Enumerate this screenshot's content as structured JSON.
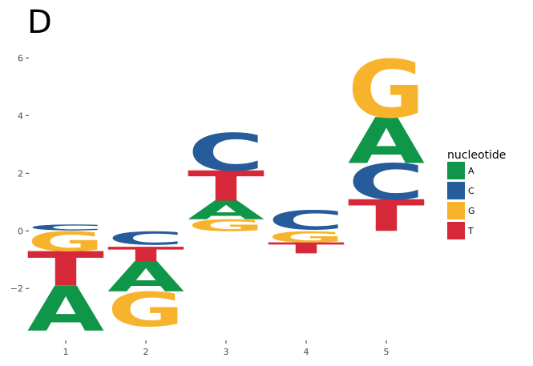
{
  "panel_label": "D",
  "chart_data": {
    "type": "sequence-logo",
    "title": "",
    "xlabel": "",
    "ylabel": "",
    "ylim": [
      -3.8,
      6.9
    ],
    "y_ticks": [
      -2,
      0,
      2,
      4,
      6
    ],
    "y_tick_labels": [
      "−2",
      "0",
      "2",
      "4",
      "6"
    ],
    "x_ticks": [
      1,
      2,
      3,
      4,
      5
    ],
    "x_tick_labels": [
      "1",
      "2",
      "3",
      "4",
      "5"
    ],
    "grid": false,
    "legend": {
      "title": "nucleotide",
      "placement": "right",
      "entries": [
        {
          "label": "A",
          "color": "#109648"
        },
        {
          "label": "C",
          "color": "#255C99"
        },
        {
          "label": "G",
          "color": "#F7B32B"
        },
        {
          "label": "T",
          "color": "#D62839"
        }
      ]
    },
    "positions": [
      {
        "x": 1,
        "letters": [
          {
            "letter": "A",
            "y0": -3.45,
            "y1": -1.9
          },
          {
            "letter": "T",
            "y0": -1.9,
            "y1": -0.7
          },
          {
            "letter": "G",
            "y0": -0.7,
            "y1": -0.02
          },
          {
            "letter": "C",
            "y0": 0.02,
            "y1": 0.22
          }
        ]
      },
      {
        "x": 2,
        "letters": [
          {
            "letter": "G",
            "y0": -3.3,
            "y1": -2.1
          },
          {
            "letter": "A",
            "y0": -2.1,
            "y1": -1.05
          },
          {
            "letter": "T",
            "y0": -1.05,
            "y1": -0.55
          },
          {
            "letter": "C",
            "y0": -0.48,
            "y1": -0.02
          }
        ]
      },
      {
        "x": 3,
        "letters": [
          {
            "letter": "G",
            "y0": 0.0,
            "y1": 0.4
          },
          {
            "letter": "A",
            "y0": 0.4,
            "y1": 1.05
          },
          {
            "letter": "T",
            "y0": 1.05,
            "y1": 2.1
          },
          {
            "letter": "C",
            "y0": 2.1,
            "y1": 3.4
          }
        ]
      },
      {
        "x": 4,
        "letters": [
          {
            "letter": "T",
            "y0": -0.78,
            "y1": -0.4
          },
          {
            "letter": "G",
            "y0": -0.4,
            "y1": -0.02
          },
          {
            "letter": "C",
            "y0": 0.05,
            "y1": 0.72
          }
        ]
      },
      {
        "x": 5,
        "letters": [
          {
            "letter": "T",
            "y0": 0.0,
            "y1": 1.1
          },
          {
            "letter": "C",
            "y0": 1.1,
            "y1": 2.35
          },
          {
            "letter": "A",
            "y0": 2.35,
            "y1": 3.95
          },
          {
            "letter": "G",
            "y0": 3.95,
            "y1": 5.95
          }
        ]
      }
    ]
  }
}
